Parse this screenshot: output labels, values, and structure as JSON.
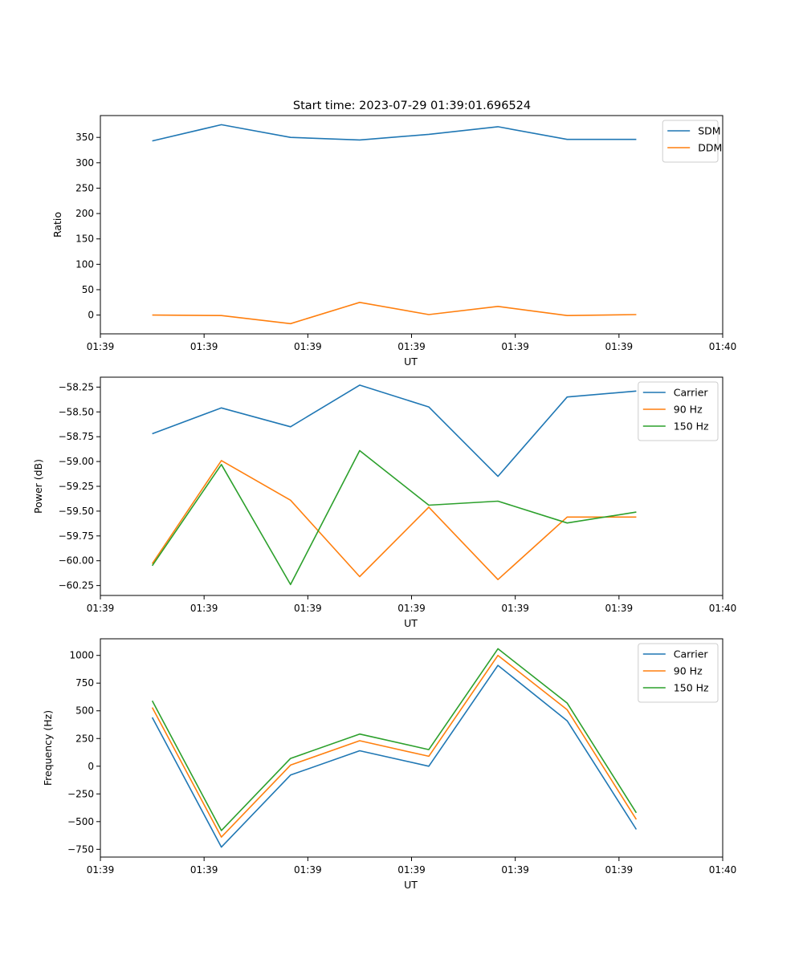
{
  "figure_title": "Start time: 2023-07-29 01:39:01.696524",
  "colors": {
    "blue": "#1f77b4",
    "orange": "#ff7f0e",
    "green": "#2ca02c"
  },
  "chart_data": [
    {
      "type": "line",
      "ylabel": "Ratio",
      "xlabel": "UT",
      "x_ticks": [
        "01:39",
        "01:39",
        "01:39",
        "01:39",
        "01:39",
        "01:39",
        "01:40"
      ],
      "x": [
        1,
        2,
        3,
        4,
        5,
        6,
        7,
        8
      ],
      "xlim": [
        0.25,
        9.25
      ],
      "ylim": [
        -37,
        393
      ],
      "y_ticks": [
        0,
        50,
        100,
        150,
        200,
        250,
        300,
        350
      ],
      "y_tick_labels": [
        "0",
        "50",
        "100",
        "150",
        "200",
        "250",
        "300",
        "350"
      ],
      "legend": "upper right",
      "series": [
        {
          "name": "SDM",
          "color": "#1f77b4",
          "values": [
            343,
            375,
            350,
            345,
            356,
            371,
            346,
            346
          ]
        },
        {
          "name": "DDM",
          "color": "#ff7f0e",
          "values": [
            0,
            -1,
            -17,
            25,
            1,
            17,
            -1,
            1
          ]
        }
      ]
    },
    {
      "type": "line",
      "ylabel": "Power (dB)",
      "xlabel": "UT",
      "x_ticks": [
        "01:39",
        "01:39",
        "01:39",
        "01:39",
        "01:39",
        "01:39",
        "01:40"
      ],
      "x": [
        1,
        2,
        3,
        4,
        5,
        6,
        7,
        8
      ],
      "xlim": [
        0.25,
        9.25
      ],
      "ylim": [
        -60.35,
        -58.15
      ],
      "y_ticks": [
        -58.25,
        -58.5,
        -58.75,
        -59.0,
        -59.25,
        -59.5,
        -59.75,
        -60.0,
        -60.25
      ],
      "y_tick_labels": [
        "−58.25",
        "−58.50",
        "−58.75",
        "−59.00",
        "−59.25",
        "−59.50",
        "−59.75",
        "−60.00",
        "−60.25"
      ],
      "legend": "upper right",
      "series": [
        {
          "name": "Carrier",
          "color": "#1f77b4",
          "values": [
            -58.72,
            -58.46,
            -58.65,
            -58.23,
            -58.45,
            -59.15,
            -58.35,
            -58.29
          ]
        },
        {
          "name": "90 Hz",
          "color": "#ff7f0e",
          "values": [
            -60.03,
            -58.99,
            -59.39,
            -60.16,
            -59.46,
            -60.19,
            -59.56,
            -59.56
          ]
        },
        {
          "name": "150 Hz",
          "color": "#2ca02c",
          "values": [
            -60.05,
            -59.03,
            -60.24,
            -58.89,
            -59.44,
            -59.4,
            -59.62,
            -59.51
          ]
        }
      ]
    },
    {
      "type": "line",
      "ylabel": "Frequency (Hz)",
      "xlabel": "UT",
      "x_ticks": [
        "01:39",
        "01:39",
        "01:39",
        "01:39",
        "01:39",
        "01:39",
        "01:40"
      ],
      "x": [
        1,
        2,
        3,
        4,
        5,
        6,
        7,
        8
      ],
      "xlim": [
        0.25,
        9.25
      ],
      "ylim": [
        -820,
        1150
      ],
      "y_ticks": [
        1000,
        750,
        500,
        250,
        0,
        -250,
        -500,
        -750
      ],
      "y_tick_labels": [
        "1000",
        "750",
        "500",
        "250",
        "0",
        "−250",
        "−500",
        "−750"
      ],
      "legend": "upper right",
      "series": [
        {
          "name": "Carrier",
          "color": "#1f77b4",
          "values": [
            440,
            -730,
            -80,
            140,
            0,
            910,
            410,
            -570
          ]
        },
        {
          "name": "90 Hz",
          "color": "#ff7f0e",
          "values": [
            530,
            -640,
            10,
            230,
            90,
            1000,
            510,
            -480
          ]
        },
        {
          "name": "150 Hz",
          "color": "#2ca02c",
          "values": [
            590,
            -580,
            70,
            290,
            150,
            1060,
            570,
            -420
          ]
        }
      ]
    }
  ]
}
